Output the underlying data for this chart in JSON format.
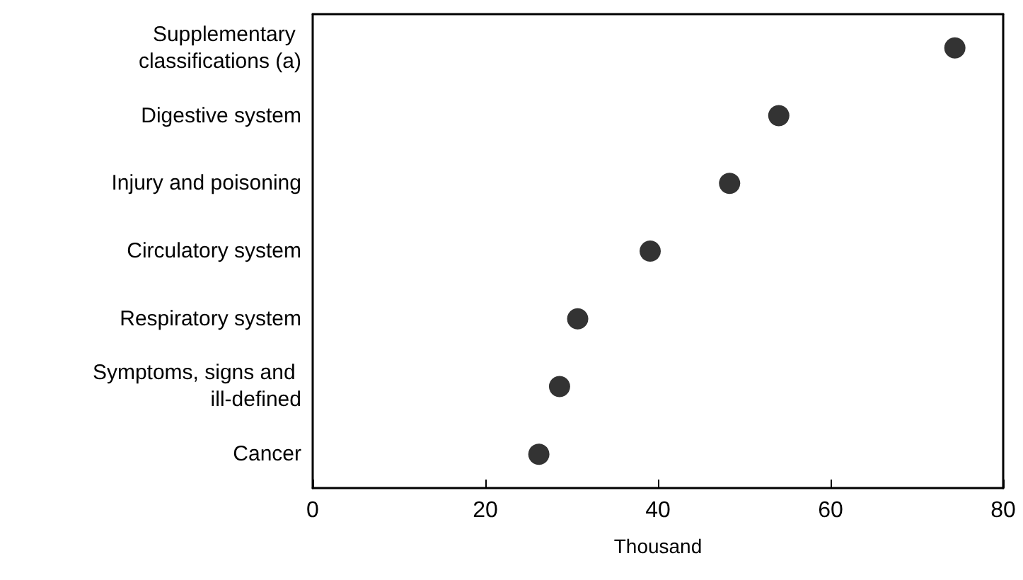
{
  "chart_data": {
    "type": "scatter",
    "orientation": "horizontal",
    "xlabel": "Thousand",
    "categories": [
      "Supplementary classifications (a)",
      "Digestive system",
      "Injury and poisoning",
      "Circulatory system",
      "Respiratory system",
      "Symptoms, signs and ill-defined",
      "Cancer"
    ],
    "values": [
      74.4,
      54.0,
      48.3,
      39.1,
      30.7,
      28.6,
      26.2
    ],
    "color": "#000000",
    "marker": "circle",
    "xlim": [
      0,
      80
    ],
    "xticks": [
      0,
      20,
      40,
      60,
      80
    ],
    "grid": false
  }
}
